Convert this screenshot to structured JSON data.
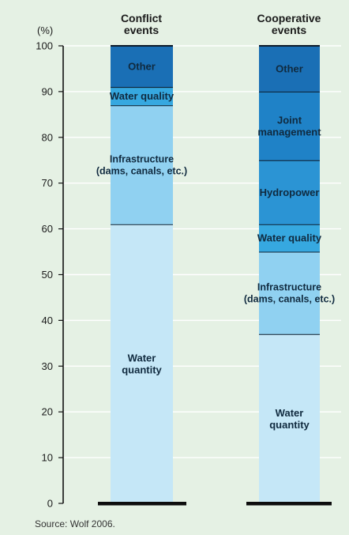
{
  "chart_data": {
    "type": "bar",
    "stacked": true,
    "ylabel": "(%)",
    "ylim": [
      0,
      100
    ],
    "yticks": [
      0,
      10,
      20,
      30,
      40,
      50,
      60,
      70,
      80,
      90,
      100
    ],
    "grid": true,
    "source": "Source: Wolf 2006.",
    "columns": [
      {
        "title": [
          "Conflict",
          "events"
        ],
        "segments": [
          {
            "label": [
              "Water",
              "quantity"
            ],
            "value": 61,
            "color": "#c5e7f7"
          },
          {
            "label": [
              "Infrastructure",
              "(dams, canals, etc.)"
            ],
            "value": 26,
            "color": "#90d1f1"
          },
          {
            "label": [
              "Water quality"
            ],
            "value": 4,
            "color": "#36a8e0"
          },
          {
            "label": [
              "Other"
            ],
            "value": 9,
            "color": "#1a6fb5"
          }
        ]
      },
      {
        "title": [
          "Cooperative",
          "events"
        ],
        "segments": [
          {
            "label": [
              "Water",
              "quantity"
            ],
            "value": 37,
            "color": "#c5e7f7"
          },
          {
            "label": [
              "Infrastructure",
              "(dams, canals, etc.)"
            ],
            "value": 18,
            "color": "#90d1f1"
          },
          {
            "label": [
              "Water quality"
            ],
            "value": 6,
            "color": "#36a8e0"
          },
          {
            "label": [
              "Hydropower"
            ],
            "value": 14,
            "color": "#2b94d4"
          },
          {
            "label": [
              "Joint",
              "management"
            ],
            "value": 15,
            "color": "#1f82c7"
          },
          {
            "label": [
              "Other"
            ],
            "value": 10,
            "color": "#1a6fb5"
          }
        ]
      }
    ]
  }
}
